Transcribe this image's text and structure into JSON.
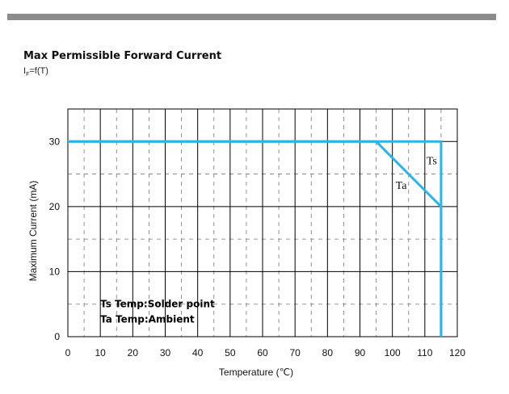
{
  "header": {
    "title": "Max Permissible Forward Current",
    "subtitle_main": "I",
    "subtitle_sub": "F",
    "subtitle_rest": "=f(T)"
  },
  "colors": {
    "curve": "#29b6e6",
    "bar": "#8c8c8c",
    "grid": "#000000"
  },
  "chart_data": {
    "type": "line",
    "title": "Max Permissible Forward Current",
    "subtitle": "IF=f(T)",
    "xlabel": "Temperature (℃)",
    "ylabel": "Maximum Current (mA)",
    "xlim": [
      0,
      120
    ],
    "ylim": [
      0,
      35
    ],
    "x_ticks": [
      0,
      10,
      20,
      30,
      40,
      50,
      60,
      70,
      80,
      90,
      100,
      110,
      120
    ],
    "y_ticks": [
      0,
      10,
      20,
      30
    ],
    "grid": true,
    "series": [
      {
        "name": "Ts",
        "x": [
          0,
          115,
          115
        ],
        "y": [
          30,
          30,
          0
        ]
      },
      {
        "name": "Ta",
        "x": [
          0,
          95,
          115,
          115
        ],
        "y": [
          30,
          30,
          20,
          0
        ]
      }
    ],
    "annotations": [
      "Ts Temp:Solder point",
      "Ta Temp:Ambient"
    ]
  }
}
